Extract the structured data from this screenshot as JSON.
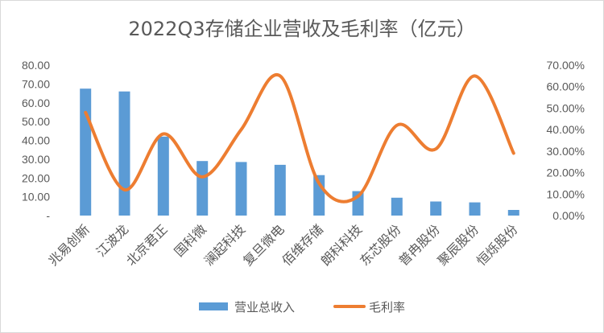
{
  "chart_data": {
    "type": "bar+line",
    "title": "2022Q3存储企业营收及毛利率（亿元）",
    "categories": [
      "兆易创新",
      "江波龙",
      "北京君正",
      "国科微",
      "澜起科技",
      "复旦微电",
      "佰维存储",
      "朗科科技",
      "东芯股份",
      "普冉股份",
      "聚辰股份",
      "恒烁股份"
    ],
    "series": [
      {
        "name": "营业总收入",
        "type": "bar",
        "axis": "left",
        "color": "#5b9bd5",
        "values": [
          67.5,
          66.0,
          42.0,
          29.0,
          28.5,
          27.0,
          21.5,
          13.0,
          9.5,
          7.5,
          7.0,
          3.0
        ]
      },
      {
        "name": "毛利率",
        "type": "line",
        "axis": "right",
        "color": "#ed7d31",
        "values": [
          0.48,
          0.12,
          0.38,
          0.18,
          0.4,
          0.65,
          0.15,
          0.09,
          0.42,
          0.31,
          0.65,
          0.29
        ]
      }
    ],
    "y_left": {
      "ylim": [
        0,
        80
      ],
      "ticks": [
        0,
        10,
        20,
        30,
        40,
        50,
        60,
        70,
        80
      ],
      "tick_labels": [
        "-",
        "10.00",
        "20.00",
        "30.00",
        "40.00",
        "50.00",
        "60.00",
        "70.00",
        "80.00"
      ]
    },
    "y_right": {
      "ylim": [
        0,
        0.7
      ],
      "ticks": [
        0,
        0.1,
        0.2,
        0.3,
        0.4,
        0.5,
        0.6,
        0.7
      ],
      "tick_labels": [
        "0.00%",
        "10.00%",
        "20.00%",
        "30.00%",
        "40.00%",
        "50.00%",
        "60.00%",
        "70.00%"
      ]
    },
    "grid": false,
    "legend_position": "bottom"
  }
}
